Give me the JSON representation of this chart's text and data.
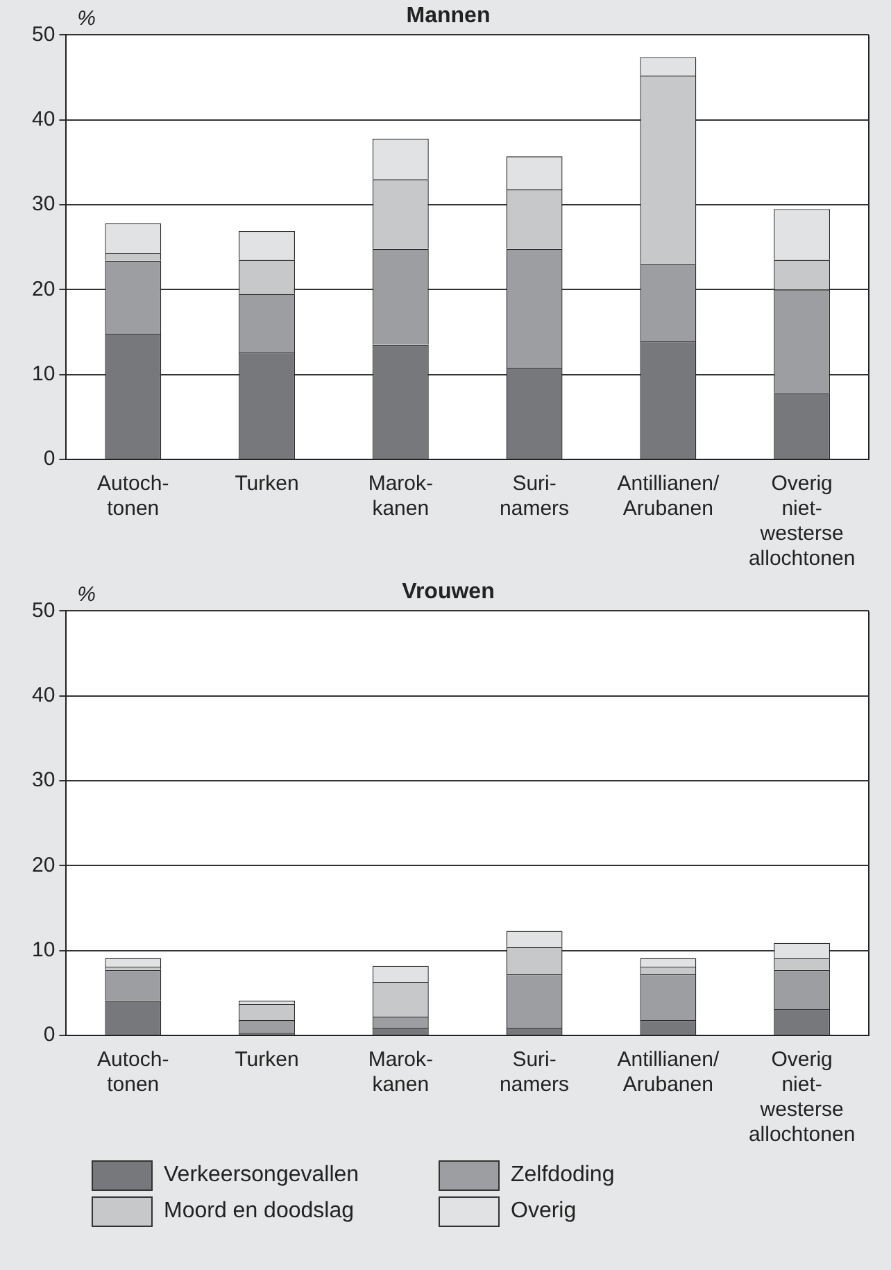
{
  "chart_data": [
    {
      "type": "bar",
      "title": "Mannen",
      "ylabel": "%",
      "stacked": true,
      "grid": "y",
      "legend": false,
      "categories": [
        "Autoch-\ntonen",
        "Turken",
        "Marok-\nkanen",
        "Suri-\nnamers",
        "Antillianen/\nArubanen",
        "Overig\nniet-\nwesterse\nallochtonen"
      ],
      "ylim": [
        0,
        50
      ],
      "yticks": [
        0,
        10,
        20,
        30,
        40,
        50
      ],
      "series": [
        {
          "color": "#77787b",
          "values": [
            14.8,
            12.6,
            13.5,
            10.8,
            13.9,
            7.8
          ]
        },
        {
          "color": "#9d9ea1",
          "values": [
            8.6,
            6.9,
            11.3,
            14.0,
            9.1,
            12.2
          ]
        },
        {
          "color": "#c7c8ca",
          "values": [
            0.9,
            4.0,
            8.2,
            7.0,
            22.2,
            3.5
          ]
        },
        {
          "color": "#e1e2e3",
          "values": [
            3.5,
            3.4,
            4.8,
            3.9,
            2.2,
            6.0
          ]
        }
      ]
    },
    {
      "type": "bar",
      "title": "Vrouwen",
      "ylabel": "%",
      "stacked": true,
      "grid": "y",
      "legend": "bottom",
      "categories": [
        "Autoch-\ntonen",
        "Turken",
        "Marok-\nkanen",
        "Suri-\nnamers",
        "Antillianen/\nArubanen",
        "Overig\nniet-\nwesterse\nallochtonen"
      ],
      "ylim": [
        0,
        50
      ],
      "yticks": [
        0,
        10,
        20,
        30,
        40,
        50
      ],
      "series": [
        {
          "name": "Verkeersongevallen",
          "color": "#77787b",
          "values": [
            4.1,
            0.3,
            0.9,
            0.9,
            1.8,
            3.1
          ]
        },
        {
          "name": "Zelfdoding",
          "color": "#9d9ea1",
          "values": [
            3.6,
            1.5,
            1.3,
            6.3,
            5.4,
            4.6
          ]
        },
        {
          "name": "Moord en doodslag",
          "color": "#c7c8ca",
          "values": [
            0.4,
            1.9,
            4.1,
            3.2,
            0.9,
            1.4
          ]
        },
        {
          "name": "Overig",
          "color": "#e1e2e3",
          "values": [
            1.0,
            0.4,
            1.9,
            1.9,
            1.0,
            1.8
          ]
        }
      ]
    }
  ]
}
